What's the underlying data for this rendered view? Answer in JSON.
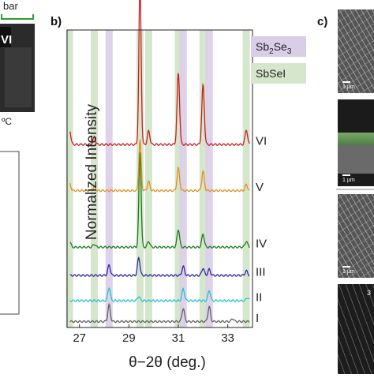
{
  "panel_labels": {
    "b": "b)",
    "c": "c)"
  },
  "left_fragment": {
    "bar_text": "bar",
    "roman": "VI",
    "temp": "ºC"
  },
  "right_fragment": {
    "scale_labels": [
      "1 µm",
      "1 µm",
      "1 µm"
    ],
    "partial_text": "3"
  },
  "colors": {
    "band_sb2se3": "#d9cde8",
    "band_sbsei": "#d6e6cd",
    "I": "#606060",
    "II": "#22c3d3",
    "III": "#2b2ba0",
    "IV": "#1a7a1a",
    "V": "#e0901c",
    "VI": "#c81e1e"
  },
  "chart_data": {
    "type": "line",
    "xlabel": "θ−2θ (deg.)",
    "ylabel": "Normalized Intensity",
    "xlim": [
      26.5,
      34.0
    ],
    "x_ticks": [
      "27",
      "29",
      "31",
      "33"
    ],
    "legend": [
      {
        "label_main": "Sb",
        "sub1": "2",
        "mid": "Se",
        "sub2": "3",
        "color_key": "band_sb2se3"
      },
      {
        "label_main": "SbSeI",
        "color_key": "band_sbsei"
      }
    ],
    "legend_position": "top-right",
    "reference_bands": {
      "Sb2Se3": [
        28.2,
        31.2,
        32.25
      ],
      "SbSeI": [
        26.6,
        27.6,
        29.45,
        29.8,
        31.0,
        32.0,
        33.75
      ]
    },
    "series": [
      {
        "name": "I",
        "color_key": "I",
        "baseline": 0.02,
        "peaks": [
          [
            28.2,
            0.055,
            0.05
          ],
          [
            31.2,
            0.045,
            0.05
          ],
          [
            32.25,
            0.05,
            0.05
          ],
          [
            33.2,
            0.01,
            0.05
          ]
        ]
      },
      {
        "name": "II",
        "color_key": "II",
        "baseline": 0.09,
        "peaks": [
          [
            28.2,
            0.045,
            0.05
          ],
          [
            29.4,
            0.015,
            0.05
          ],
          [
            31.2,
            0.04,
            0.05
          ],
          [
            32.25,
            0.035,
            0.05
          ],
          [
            33.8,
            0.01,
            0.05
          ]
        ]
      },
      {
        "name": "III",
        "color_key": "III",
        "baseline": 0.175,
        "peaks": [
          [
            28.2,
            0.035,
            0.05
          ],
          [
            29.4,
            0.06,
            0.05
          ],
          [
            31.2,
            0.03,
            0.05
          ],
          [
            32.0,
            0.025,
            0.05
          ],
          [
            32.25,
            0.02,
            0.05
          ],
          [
            33.75,
            0.015,
            0.05
          ]
        ]
      },
      {
        "name": "IV",
        "color_key": "IV",
        "baseline": 0.27,
        "peaks": [
          [
            26.6,
            0.02,
            0.05
          ],
          [
            27.6,
            0.01,
            0.05
          ],
          [
            29.45,
            0.32,
            0.045
          ],
          [
            29.8,
            0.02,
            0.05
          ],
          [
            31.0,
            0.06,
            0.05
          ],
          [
            32.0,
            0.045,
            0.05
          ],
          [
            33.75,
            0.02,
            0.05
          ]
        ]
      },
      {
        "name": "V",
        "color_key": "V",
        "baseline": 0.46,
        "peaks": [
          [
            26.6,
            0.025,
            0.05
          ],
          [
            27.6,
            0.012,
            0.05
          ],
          [
            29.45,
            0.17,
            0.045
          ],
          [
            29.8,
            0.03,
            0.05
          ],
          [
            31.0,
            0.075,
            0.05
          ],
          [
            32.0,
            0.065,
            0.05
          ],
          [
            33.75,
            0.02,
            0.05
          ]
        ]
      },
      {
        "name": "VI",
        "color_key": "VI",
        "baseline": 0.615,
        "peaks": [
          [
            26.6,
            0.05,
            0.05
          ],
          [
            27.6,
            0.025,
            0.05
          ],
          [
            29.45,
            0.55,
            0.045
          ],
          [
            29.8,
            0.045,
            0.05
          ],
          [
            31.0,
            0.24,
            0.05
          ],
          [
            32.0,
            0.2,
            0.05
          ],
          [
            33.75,
            0.05,
            0.05
          ]
        ]
      }
    ]
  }
}
